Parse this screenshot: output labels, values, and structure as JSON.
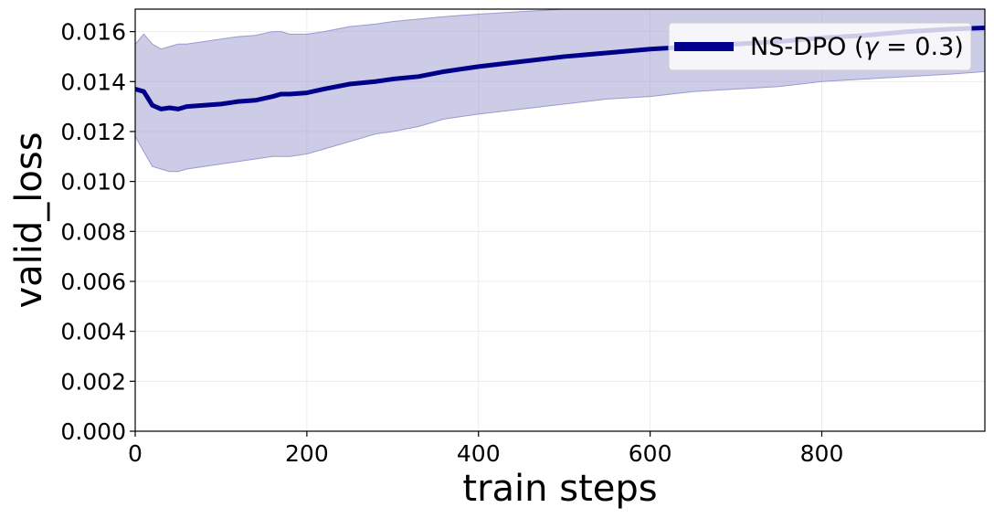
{
  "chart_data": {
    "type": "line",
    "xlabel": "train steps",
    "ylabel": "valid_loss",
    "xlim": [
      0,
      990
    ],
    "ylim": [
      0,
      0.0169
    ],
    "x_ticks": [
      0,
      200,
      400,
      600,
      800
    ],
    "x_tick_labels": [
      "0",
      "200",
      "400",
      "600",
      "800"
    ],
    "y_ticks": [
      0,
      0.002,
      0.004,
      0.006,
      0.008,
      0.01,
      0.012,
      0.014,
      0.016
    ],
    "y_tick_labels": [
      "0.000",
      "0.002",
      "0.004",
      "0.006",
      "0.008",
      "0.010",
      "0.012",
      "0.014",
      "0.016"
    ],
    "grid": true,
    "legend_position": "top-right",
    "series": [
      {
        "name": "NS-DPO (γ = 0.3)",
        "legend_label": "NS-DPO (",
        "legend_gamma": "γ",
        "legend_rest": " = 0.3)",
        "color": "#00008b",
        "band_color": "#9a9ad0",
        "x": [
          0,
          10,
          20,
          30,
          40,
          50,
          60,
          80,
          100,
          120,
          140,
          160,
          170,
          180,
          200,
          220,
          250,
          280,
          300,
          330,
          360,
          400,
          450,
          500,
          550,
          600,
          650,
          700,
          750,
          800,
          850,
          900,
          950,
          990
        ],
        "mean": [
          0.0137,
          0.0136,
          0.01305,
          0.0129,
          0.01295,
          0.0129,
          0.013,
          0.01305,
          0.0131,
          0.0132,
          0.01325,
          0.0134,
          0.0135,
          0.0135,
          0.01355,
          0.0137,
          0.0139,
          0.014,
          0.0141,
          0.0142,
          0.0144,
          0.0146,
          0.0148,
          0.015,
          0.01515,
          0.0153,
          0.0154,
          0.0155,
          0.0156,
          0.01575,
          0.01585,
          0.016,
          0.0161,
          0.01615
        ],
        "upper": [
          0.0155,
          0.0159,
          0.0155,
          0.0153,
          0.0154,
          0.0155,
          0.0155,
          0.0156,
          0.0157,
          0.0158,
          0.01585,
          0.016,
          0.016,
          0.0159,
          0.0159,
          0.016,
          0.0162,
          0.0163,
          0.0164,
          0.0165,
          0.0166,
          0.0167,
          0.0168,
          0.0169,
          0.0169,
          0.0169,
          0.0169,
          0.0169,
          0.0169,
          0.0169,
          0.0169,
          0.0169,
          0.0169,
          0.0169
        ],
        "lower": [
          0.0118,
          0.0112,
          0.0106,
          0.0105,
          0.0104,
          0.0104,
          0.0105,
          0.0106,
          0.0107,
          0.0108,
          0.0109,
          0.011,
          0.011,
          0.011,
          0.0111,
          0.0113,
          0.0116,
          0.0119,
          0.012,
          0.0122,
          0.0125,
          0.0127,
          0.0129,
          0.0131,
          0.0133,
          0.0134,
          0.0136,
          0.0137,
          0.0138,
          0.014,
          0.0141,
          0.0142,
          0.0143,
          0.0144
        ]
      }
    ]
  }
}
